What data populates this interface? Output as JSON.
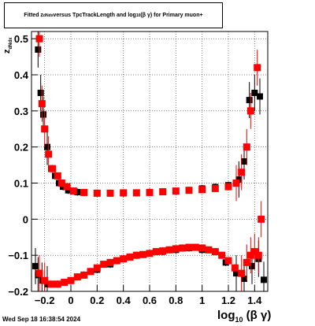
{
  "title": {
    "prefix": "Fitted  z",
    "sub": "dNdx",
    "middle": "  versus TpcTrackLength and log",
    "sub2": "10",
    "suffix": " (β γ) for Primary muon+"
  },
  "footer": {
    "timestamp": "Wed Sep 18 16:38:54 2024"
  },
  "colors": {
    "series_black": "#000000",
    "series_red": "#ff0000",
    "grid": "#000000"
  },
  "chart_data": {
    "type": "scatter",
    "title": "Fitted z_dNdx versus TpcTrackLength and log10(βγ) for Primary muon+",
    "xlabel": "log10(β γ)",
    "ylabel": "z_dNdx",
    "xlim": [
      -0.3,
      1.5
    ],
    "ylim": [
      -0.2,
      0.52
    ],
    "x_ticks": [
      -0.2,
      0,
      0.2,
      0.4,
      0.6,
      0.8,
      1,
      1.2,
      1.4
    ],
    "x_tick_labels": [
      "−0.2",
      "0",
      "0.2",
      "0.4",
      "0.6",
      "0.8",
      "1",
      "1.2",
      "1.4"
    ],
    "y_ticks": [
      -0.2,
      -0.1,
      0,
      0.1,
      0.2,
      0.3,
      0.4,
      0.5
    ],
    "y_tick_labels": [
      "−0.2",
      "−0.1",
      "0",
      "0.1",
      "0.2",
      "0.3",
      "0.4",
      "0.5"
    ],
    "grid": true,
    "series": [
      {
        "name": "",
        "color": "#000000",
        "points": [
          [
            -0.27,
            -0.13
          ],
          [
            -0.25,
            0.47
          ],
          [
            -0.23,
            0.35
          ],
          [
            -0.21,
            0.29
          ],
          [
            -0.18,
            0.2
          ],
          [
            -0.15,
            0.14
          ],
          [
            -0.12,
            0.12
          ],
          [
            -0.09,
            0.1
          ],
          [
            -0.06,
            0.09
          ],
          [
            -0.02,
            0.08
          ],
          [
            0.05,
            0.075
          ],
          [
            0.2,
            0.072
          ],
          [
            0.4,
            0.072
          ],
          [
            0.6,
            0.075
          ],
          [
            0.8,
            0.077
          ],
          [
            1.0,
            0.085
          ],
          [
            1.1,
            0.089
          ],
          [
            1.2,
            0.094
          ],
          [
            1.28,
            0.11
          ],
          [
            1.32,
            0.16
          ],
          [
            1.36,
            0.33
          ],
          [
            1.4,
            0.35
          ],
          [
            1.44,
            0.34
          ],
          [
            -0.25,
            -0.155
          ],
          [
            -0.22,
            -0.17
          ],
          [
            -0.18,
            -0.18
          ],
          [
            -0.1,
            -0.18
          ],
          [
            0.0,
            -0.17
          ],
          [
            0.1,
            -0.155
          ],
          [
            0.2,
            -0.14
          ],
          [
            0.3,
            -0.125
          ],
          [
            0.4,
            -0.11
          ],
          [
            0.5,
            -0.1
          ],
          [
            0.6,
            -0.095
          ],
          [
            0.7,
            -0.09
          ],
          [
            0.8,
            -0.085
          ],
          [
            0.9,
            -0.08
          ],
          [
            1.0,
            -0.085
          ],
          [
            1.1,
            -0.09
          ],
          [
            1.18,
            -0.12
          ],
          [
            1.26,
            -0.15
          ],
          [
            1.32,
            -0.165
          ],
          [
            1.38,
            -0.13
          ],
          [
            1.43,
            -0.11
          ],
          [
            1.47,
            -0.168
          ]
        ]
      },
      {
        "name": "",
        "color": "#ff0000",
        "points": [
          [
            -0.24,
            0.5
          ],
          [
            -0.22,
            0.32
          ],
          [
            -0.2,
            0.25
          ],
          [
            -0.17,
            0.18
          ],
          [
            -0.14,
            0.14
          ],
          [
            -0.1,
            0.12
          ],
          [
            -0.07,
            0.1
          ],
          [
            -0.03,
            0.09
          ],
          [
            0.02,
            0.078
          ],
          [
            0.1,
            0.074
          ],
          [
            0.2,
            0.072
          ],
          [
            0.3,
            0.072
          ],
          [
            0.4,
            0.073
          ],
          [
            0.5,
            0.073
          ],
          [
            0.6,
            0.074
          ],
          [
            0.7,
            0.076
          ],
          [
            0.8,
            0.078
          ],
          [
            0.9,
            0.08
          ],
          [
            1.0,
            0.082
          ],
          [
            1.1,
            0.085
          ],
          [
            1.2,
            0.09
          ],
          [
            1.26,
            0.1
          ],
          [
            1.3,
            0.13
          ],
          [
            1.34,
            0.2
          ],
          [
            1.37,
            0.3
          ],
          [
            1.42,
            0.42
          ],
          [
            1.45,
            0.0
          ],
          [
            -0.24,
            -0.15
          ],
          [
            -0.2,
            -0.17
          ],
          [
            -0.15,
            -0.18
          ],
          [
            -0.1,
            -0.18
          ],
          [
            -0.05,
            -0.175
          ],
          [
            0.0,
            -0.17
          ],
          [
            0.05,
            -0.16
          ],
          [
            0.1,
            -0.155
          ],
          [
            0.15,
            -0.145
          ],
          [
            0.2,
            -0.135
          ],
          [
            0.25,
            -0.125
          ],
          [
            0.3,
            -0.12
          ],
          [
            0.35,
            -0.115
          ],
          [
            0.4,
            -0.11
          ],
          [
            0.45,
            -0.105
          ],
          [
            0.5,
            -0.1
          ],
          [
            0.55,
            -0.098
          ],
          [
            0.6,
            -0.095
          ],
          [
            0.65,
            -0.09
          ],
          [
            0.7,
            -0.088
          ],
          [
            0.75,
            -0.085
          ],
          [
            0.8,
            -0.082
          ],
          [
            0.85,
            -0.08
          ],
          [
            0.9,
            -0.078
          ],
          [
            0.95,
            -0.078
          ],
          [
            1.0,
            -0.08
          ],
          [
            1.05,
            -0.085
          ],
          [
            1.1,
            -0.09
          ],
          [
            1.15,
            -0.1
          ],
          [
            1.2,
            -0.115
          ],
          [
            1.25,
            -0.135
          ],
          [
            1.3,
            -0.15
          ],
          [
            1.34,
            -0.12
          ],
          [
            1.37,
            -0.1
          ],
          [
            1.4,
            -0.09
          ],
          [
            1.43,
            -0.1
          ]
        ]
      }
    ]
  }
}
